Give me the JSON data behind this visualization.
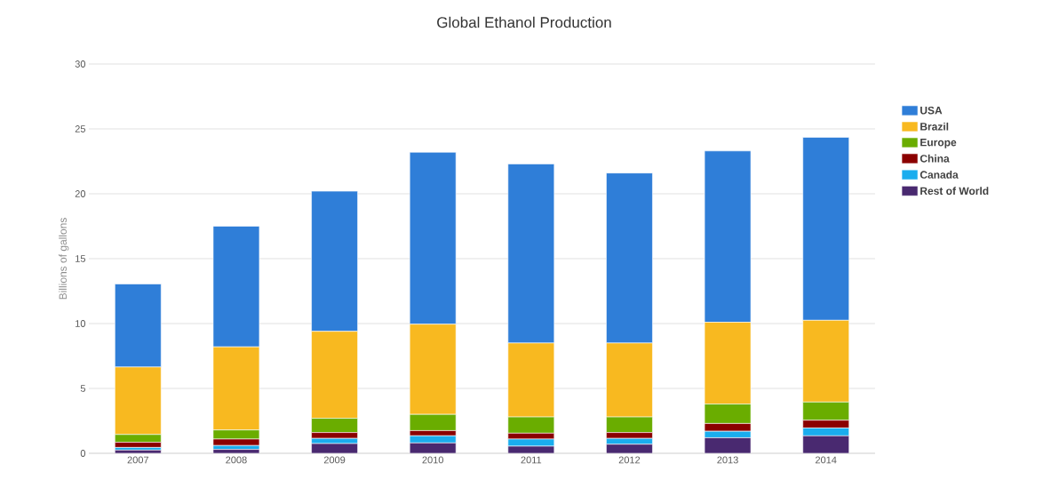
{
  "chart_data": {
    "type": "bar",
    "title": "Global Ethanol Production",
    "ylabel": "Billions of gallons",
    "categories": [
      "2007",
      "2008",
      "2009",
      "2010",
      "2011",
      "2012",
      "2013",
      "2014"
    ],
    "stacked": true,
    "series": [
      {
        "name": "Rest of World",
        "color": "#492970",
        "values": [
          0.25,
          0.3,
          0.75,
          0.8,
          0.55,
          0.7,
          1.2,
          1.35
        ]
      },
      {
        "name": "Canada",
        "color": "#1aadee",
        "values": [
          0.2,
          0.3,
          0.4,
          0.55,
          0.55,
          0.45,
          0.5,
          0.6
        ]
      },
      {
        "name": "China",
        "color": "#8b0000",
        "values": [
          0.4,
          0.5,
          0.45,
          0.4,
          0.45,
          0.45,
          0.6,
          0.6
        ]
      },
      {
        "name": "Europe",
        "color": "#6aad00",
        "values": [
          0.6,
          0.7,
          1.1,
          1.25,
          1.25,
          1.2,
          1.5,
          1.4
        ]
      },
      {
        "name": "Brazil",
        "color": "#f8b920",
        "values": [
          5.2,
          6.4,
          6.7,
          6.95,
          5.7,
          5.7,
          6.3,
          6.3
        ]
      },
      {
        "name": "USA",
        "color": "#2f7ed8",
        "values": [
          6.4,
          9.3,
          10.8,
          13.25,
          13.8,
          13.1,
          13.2,
          14.1
        ]
      }
    ],
    "ylim": [
      0,
      30
    ],
    "yticks": [
      0,
      5,
      10,
      15,
      20,
      25,
      30
    ],
    "grid": "y",
    "legend": "right"
  }
}
